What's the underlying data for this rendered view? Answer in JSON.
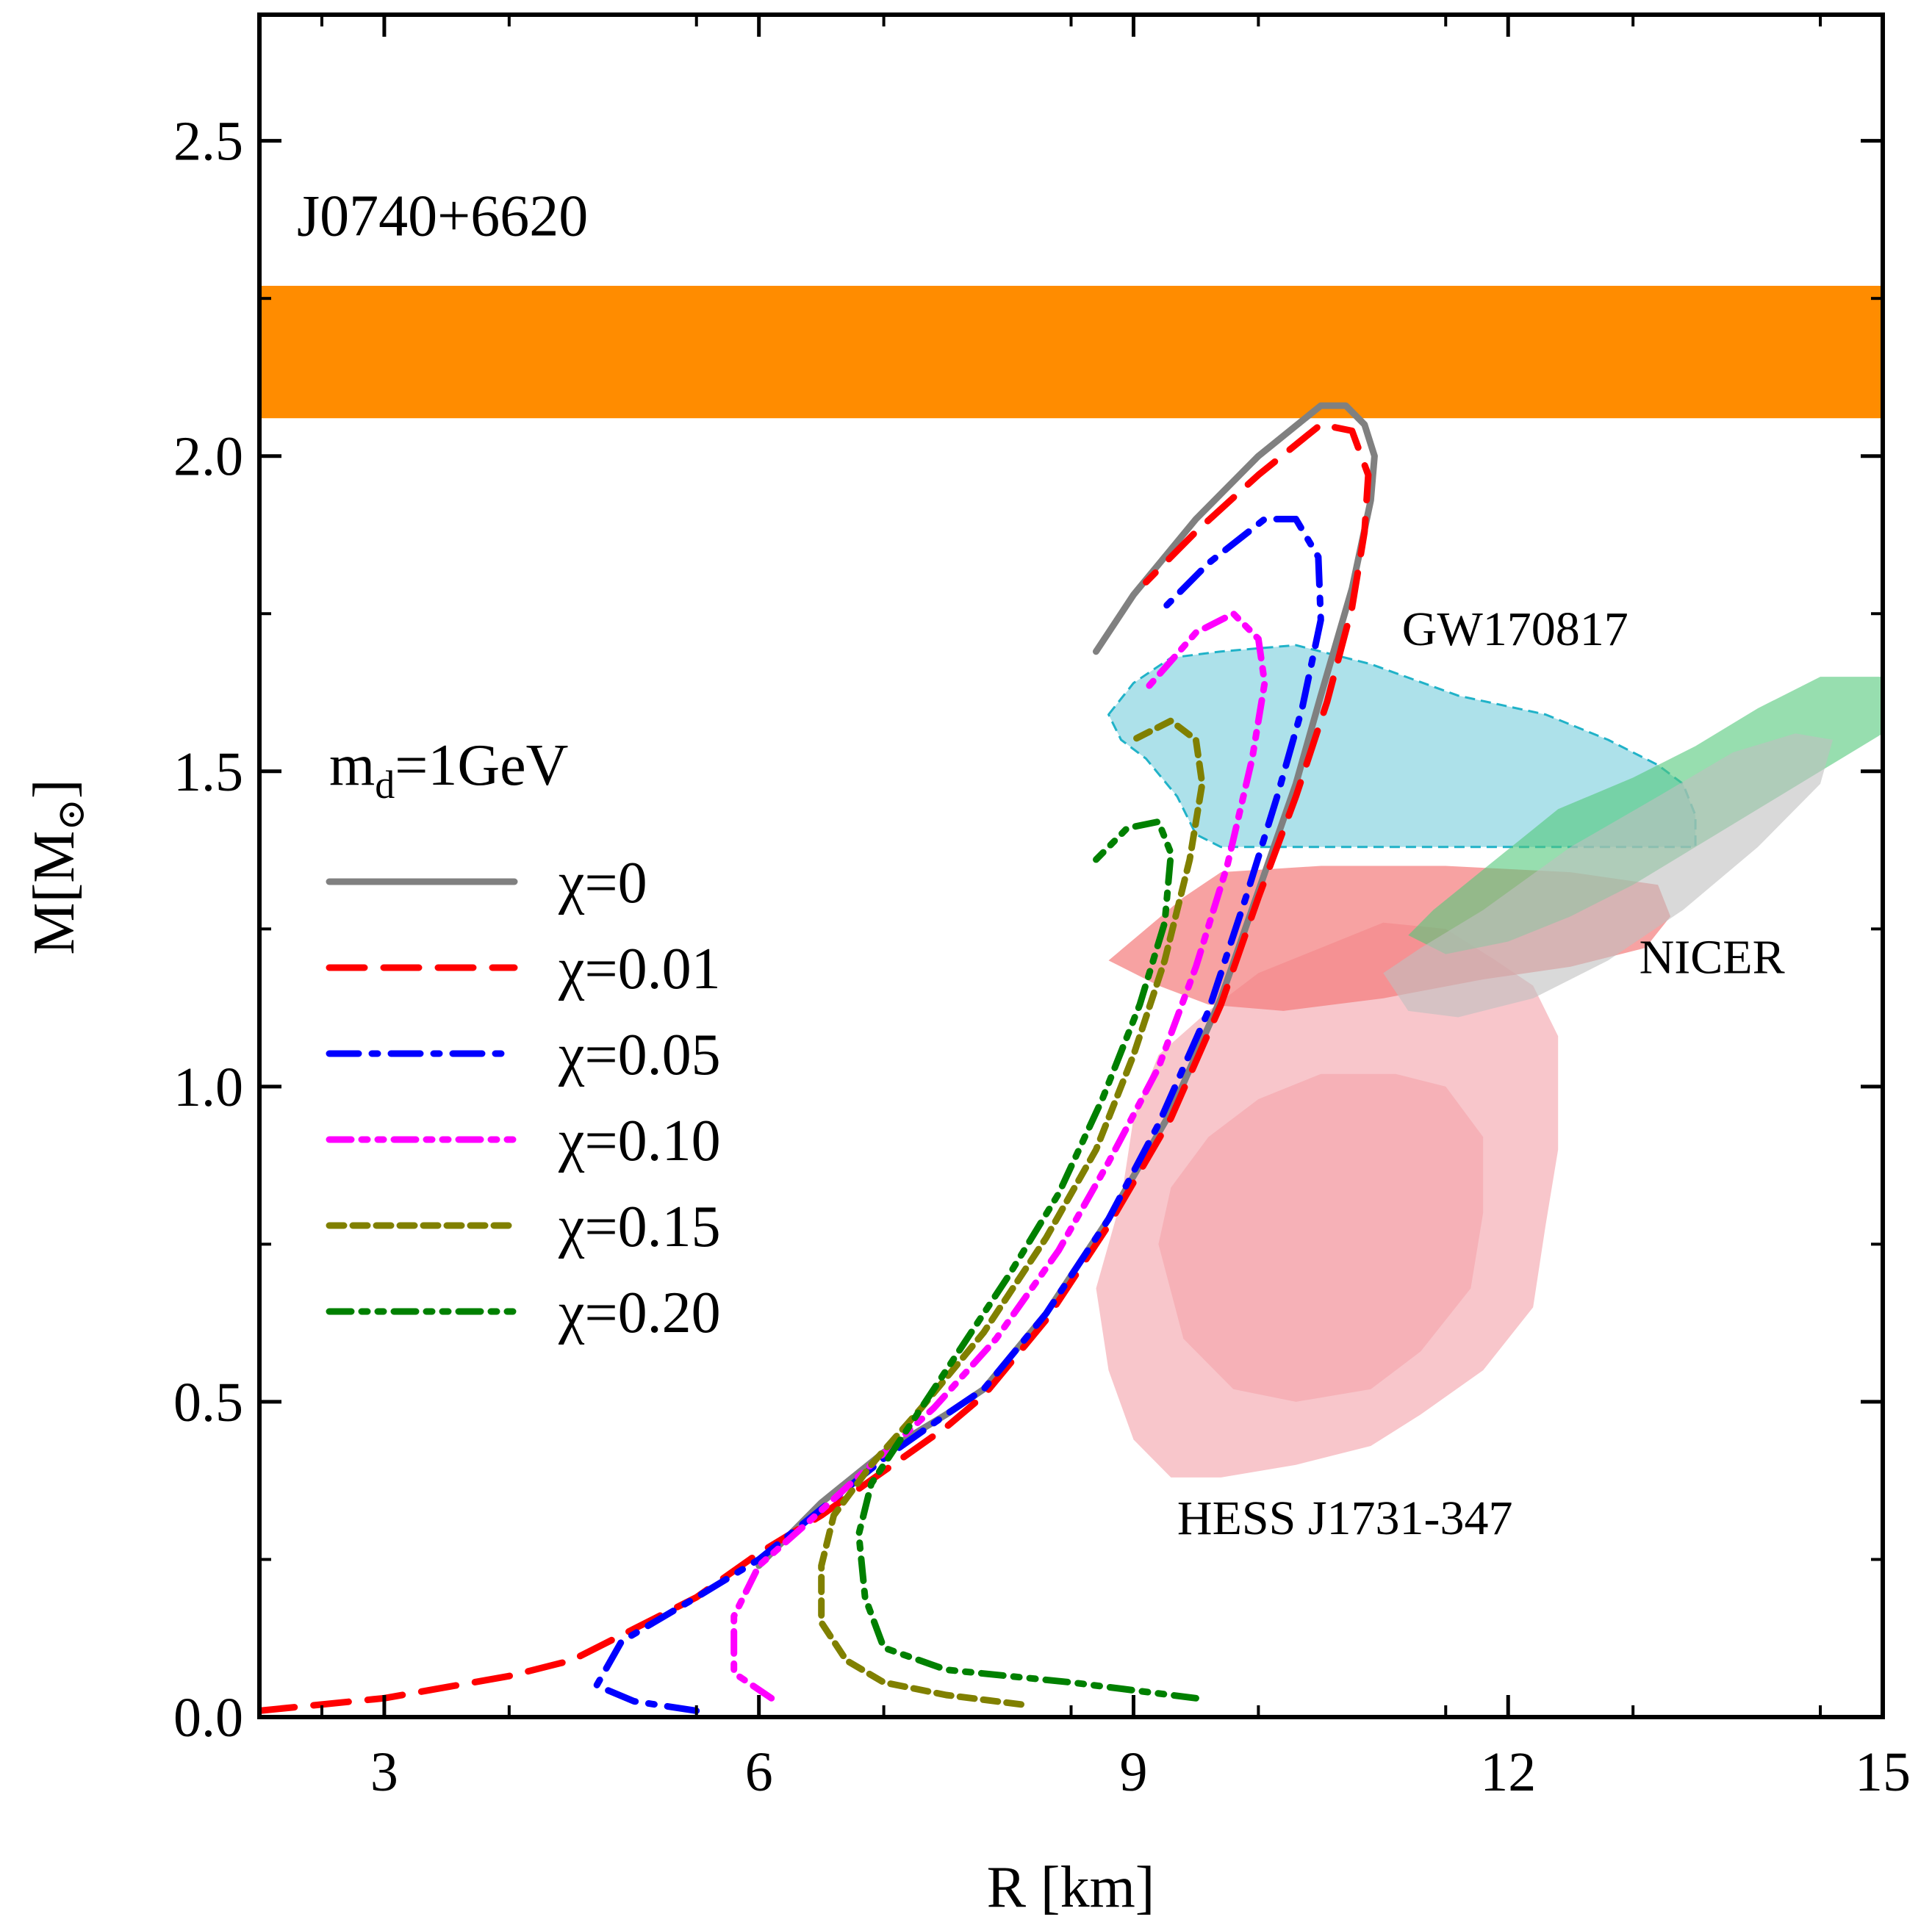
{
  "chart_data": {
    "type": "line",
    "title": "",
    "xlabel": "R [km]",
    "ylabel_main": "M[M",
    "ylabel_sub": "⊙",
    "ylabel_close": "]",
    "xlim": [
      2,
      15
    ],
    "ylim": [
      0,
      2.7
    ],
    "xticks": [
      3,
      6,
      9,
      12,
      15
    ],
    "xtick_labels": [
      "3",
      "6",
      "9",
      "12",
      "15"
    ],
    "yticks": [
      0.0,
      0.5,
      1.0,
      1.5,
      2.0,
      2.5
    ],
    "ytick_labels": [
      "0.0",
      "0.5",
      "1.0",
      "1.5",
      "2.0",
      "2.5"
    ],
    "legend_title_main": "m",
    "legend_title_sub": "d",
    "legend_title_rest": "=1GeV",
    "legend_position": "center-left",
    "series": [
      {
        "name": "χ=0",
        "color": "#808080",
        "style": "solid",
        "points": [
          [
            6.0,
            0.24
          ],
          [
            6.5,
            0.34
          ],
          [
            7.0,
            0.42
          ],
          [
            7.5,
            0.48
          ],
          [
            7.8,
            0.52
          ],
          [
            8.3,
            0.64
          ],
          [
            8.8,
            0.79
          ],
          [
            9.3,
            0.96
          ],
          [
            9.7,
            1.14
          ],
          [
            10.0,
            1.31
          ],
          [
            10.3,
            1.48
          ],
          [
            10.5,
            1.62
          ],
          [
            10.75,
            1.79
          ],
          [
            10.9,
            1.93
          ],
          [
            10.93,
            2.0
          ],
          [
            10.85,
            2.05
          ],
          [
            10.7,
            2.08
          ],
          [
            10.5,
            2.08
          ],
          [
            10.0,
            2.0
          ],
          [
            9.5,
            1.9
          ],
          [
            9.0,
            1.78
          ],
          [
            8.7,
            1.69
          ]
        ]
      },
      {
        "name": "χ=0.01",
        "color": "#ff0000",
        "style": "dashed",
        "points": [
          [
            2.0,
            0.01
          ],
          [
            3.0,
            0.03
          ],
          [
            4.0,
            0.065
          ],
          [
            4.5,
            0.09
          ],
          [
            5.0,
            0.14
          ],
          [
            5.5,
            0.19
          ],
          [
            6.0,
            0.26
          ],
          [
            6.5,
            0.32
          ],
          [
            7.0,
            0.39
          ],
          [
            7.5,
            0.46
          ],
          [
            7.8,
            0.51
          ],
          [
            8.3,
            0.63
          ],
          [
            8.8,
            0.78
          ],
          [
            9.3,
            0.95
          ],
          [
            9.7,
            1.13
          ],
          [
            10.0,
            1.3
          ],
          [
            10.3,
            1.46
          ],
          [
            10.55,
            1.61
          ],
          [
            10.75,
            1.76
          ],
          [
            10.85,
            1.88
          ],
          [
            10.88,
            1.97
          ],
          [
            10.75,
            2.04
          ],
          [
            10.5,
            2.05
          ],
          [
            10.0,
            1.97
          ],
          [
            9.5,
            1.88
          ],
          [
            9.1,
            1.8
          ]
        ]
      },
      {
        "name": "χ=0.05",
        "color": "#0000ff",
        "style": "dashdot",
        "points": [
          [
            5.5,
            0.01
          ],
          [
            5.0,
            0.025
          ],
          [
            4.7,
            0.05
          ],
          [
            4.9,
            0.12
          ],
          [
            5.5,
            0.19
          ],
          [
            6.0,
            0.25
          ],
          [
            6.5,
            0.33
          ],
          [
            7.0,
            0.41
          ],
          [
            7.5,
            0.48
          ],
          [
            7.8,
            0.52
          ],
          [
            8.3,
            0.64
          ],
          [
            8.8,
            0.79
          ],
          [
            9.2,
            0.94
          ],
          [
            9.6,
            1.12
          ],
          [
            9.9,
            1.3
          ],
          [
            10.15,
            1.46
          ],
          [
            10.35,
            1.6
          ],
          [
            10.5,
            1.74
          ],
          [
            10.48,
            1.84
          ],
          [
            10.3,
            1.9
          ],
          [
            10.05,
            1.9
          ],
          [
            9.6,
            1.83
          ],
          [
            9.2,
            1.75
          ]
        ]
      },
      {
        "name": "χ=0.10",
        "color": "#ff00ff",
        "style": "dashdotdot",
        "points": [
          [
            6.1,
            0.03
          ],
          [
            5.8,
            0.07
          ],
          [
            5.8,
            0.16
          ],
          [
            6.0,
            0.24
          ],
          [
            6.4,
            0.31
          ],
          [
            6.9,
            0.4
          ],
          [
            7.4,
            0.49
          ],
          [
            7.9,
            0.6
          ],
          [
            8.4,
            0.74
          ],
          [
            8.8,
            0.88
          ],
          [
            9.2,
            1.03
          ],
          [
            9.5,
            1.19
          ],
          [
            9.75,
            1.35
          ],
          [
            9.95,
            1.52
          ],
          [
            10.05,
            1.64
          ],
          [
            10.0,
            1.71
          ],
          [
            9.8,
            1.75
          ],
          [
            9.5,
            1.72
          ],
          [
            9.1,
            1.63
          ]
        ]
      },
      {
        "name": "χ=0.15",
        "color": "#808000",
        "style": "shortdash",
        "points": [
          [
            8.1,
            0.02
          ],
          [
            7.5,
            0.035
          ],
          [
            7.0,
            0.055
          ],
          [
            6.7,
            0.09
          ],
          [
            6.5,
            0.15
          ],
          [
            6.5,
            0.24
          ],
          [
            6.6,
            0.32
          ],
          [
            6.9,
            0.4
          ],
          [
            7.3,
            0.49
          ],
          [
            7.8,
            0.61
          ],
          [
            8.3,
            0.76
          ],
          [
            8.7,
            0.9
          ],
          [
            9.0,
            1.05
          ],
          [
            9.25,
            1.2
          ],
          [
            9.45,
            1.36
          ],
          [
            9.55,
            1.48
          ],
          [
            9.5,
            1.55
          ],
          [
            9.3,
            1.58
          ],
          [
            9.0,
            1.55
          ]
        ]
      },
      {
        "name": "χ=0.20",
        "color": "#008000",
        "style": "dashdotdot",
        "points": [
          [
            9.5,
            0.03
          ],
          [
            8.5,
            0.055
          ],
          [
            7.5,
            0.075
          ],
          [
            7.0,
            0.11
          ],
          [
            6.85,
            0.19
          ],
          [
            6.8,
            0.29
          ],
          [
            6.9,
            0.37
          ],
          [
            7.2,
            0.46
          ],
          [
            7.6,
            0.58
          ],
          [
            8.0,
            0.7
          ],
          [
            8.4,
            0.83
          ],
          [
            8.75,
            0.98
          ],
          [
            9.05,
            1.13
          ],
          [
            9.25,
            1.26
          ],
          [
            9.3,
            1.37
          ],
          [
            9.2,
            1.42
          ],
          [
            8.95,
            1.41
          ],
          [
            8.7,
            1.36
          ]
        ]
      }
    ],
    "bands": [
      {
        "name": "J0740+6620",
        "color": "#ff8c00",
        "ymin": 2.06,
        "ymax": 2.27
      }
    ],
    "regions": [
      {
        "name": "HESS J1731-347 outer",
        "color": "#f4a0a8",
        "opacity": 0.6,
        "points": [
          [
            8.7,
            0.68
          ],
          [
            8.8,
            0.55
          ],
          [
            9.0,
            0.44
          ],
          [
            9.3,
            0.38
          ],
          [
            9.7,
            0.38
          ],
          [
            10.3,
            0.4
          ],
          [
            10.9,
            0.43
          ],
          [
            11.3,
            0.48
          ],
          [
            11.8,
            0.55
          ],
          [
            12.2,
            0.65
          ],
          [
            12.3,
            0.78
          ],
          [
            12.4,
            0.9
          ],
          [
            12.4,
            1.08
          ],
          [
            12.2,
            1.16
          ],
          [
            11.9,
            1.2
          ],
          [
            11.5,
            1.25
          ],
          [
            11.0,
            1.26
          ],
          [
            10.5,
            1.22
          ],
          [
            10.0,
            1.18
          ],
          [
            9.6,
            1.12
          ],
          [
            9.2,
            1.05
          ],
          [
            9.0,
            0.95
          ],
          [
            8.9,
            0.82
          ]
        ]
      },
      {
        "name": "HESS J1731-347 inner",
        "color": "#f4a0a8",
        "opacity": 0.55,
        "points": [
          [
            9.2,
            0.75
          ],
          [
            9.4,
            0.6
          ],
          [
            9.8,
            0.52
          ],
          [
            10.3,
            0.5
          ],
          [
            10.9,
            0.52
          ],
          [
            11.3,
            0.58
          ],
          [
            11.7,
            0.68
          ],
          [
            11.8,
            0.8
          ],
          [
            11.8,
            0.92
          ],
          [
            11.5,
            1.0
          ],
          [
            11.1,
            1.02
          ],
          [
            10.5,
            1.02
          ],
          [
            10.0,
            0.98
          ],
          [
            9.6,
            0.92
          ],
          [
            9.3,
            0.84
          ]
        ]
      },
      {
        "name": "GW170817",
        "color": "#9fdce6",
        "opacity": 0.85,
        "stroke": "#20b2c8",
        "points": [
          [
            8.8,
            1.59
          ],
          [
            9.0,
            1.64
          ],
          [
            9.3,
            1.68
          ],
          [
            9.7,
            1.69
          ],
          [
            10.3,
            1.7
          ],
          [
            10.9,
            1.67
          ],
          [
            11.6,
            1.62
          ],
          [
            12.3,
            1.59
          ],
          [
            12.8,
            1.55
          ],
          [
            13.2,
            1.51
          ],
          [
            13.4,
            1.48
          ],
          [
            13.5,
            1.43
          ],
          [
            13.5,
            1.38
          ],
          [
            13.2,
            1.38
          ],
          [
            12.5,
            1.38
          ],
          [
            11.5,
            1.38
          ],
          [
            10.5,
            1.38
          ],
          [
            9.7,
            1.38
          ],
          [
            9.5,
            1.4
          ],
          [
            9.35,
            1.46
          ],
          [
            9.1,
            1.52
          ],
          [
            8.9,
            1.55
          ]
        ]
      },
      {
        "name": "NICER red outer",
        "color": "#f47a7a",
        "opacity": 0.7,
        "points": [
          [
            8.8,
            1.2
          ],
          [
            9.1,
            1.25
          ],
          [
            9.4,
            1.3
          ],
          [
            9.7,
            1.34
          ],
          [
            10.5,
            1.35
          ],
          [
            11.5,
            1.35
          ],
          [
            12.5,
            1.34
          ],
          [
            13.2,
            1.32
          ],
          [
            13.3,
            1.27
          ],
          [
            13.1,
            1.22
          ],
          [
            12.5,
            1.19
          ],
          [
            11.8,
            1.17
          ],
          [
            11.0,
            1.14
          ],
          [
            10.2,
            1.12
          ],
          [
            9.6,
            1.13
          ],
          [
            9.2,
            1.16
          ]
        ]
      },
      {
        "name": "NICER green",
        "color": "#52c87a",
        "opacity": 0.6,
        "points": [
          [
            11.2,
            1.24
          ],
          [
            11.4,
            1.28
          ],
          [
            11.9,
            1.36
          ],
          [
            12.4,
            1.44
          ],
          [
            13.0,
            1.49
          ],
          [
            13.5,
            1.54
          ],
          [
            14.0,
            1.6
          ],
          [
            14.5,
            1.65
          ],
          [
            15.0,
            1.65
          ],
          [
            15.2,
            1.62
          ],
          [
            15.0,
            1.56
          ],
          [
            14.5,
            1.5
          ],
          [
            14.0,
            1.44
          ],
          [
            13.5,
            1.38
          ],
          [
            13.0,
            1.32
          ],
          [
            12.5,
            1.27
          ],
          [
            12.0,
            1.23
          ],
          [
            11.5,
            1.21
          ]
        ]
      },
      {
        "name": "NICER grey",
        "color": "#c0c0c0",
        "opacity": 0.6,
        "points": [
          [
            11.0,
            1.18
          ],
          [
            11.3,
            1.22
          ],
          [
            11.8,
            1.28
          ],
          [
            12.5,
            1.38
          ],
          [
            13.2,
            1.46
          ],
          [
            13.8,
            1.53
          ],
          [
            14.3,
            1.56
          ],
          [
            14.6,
            1.55
          ],
          [
            14.5,
            1.48
          ],
          [
            14.0,
            1.38
          ],
          [
            13.4,
            1.28
          ],
          [
            12.8,
            1.2
          ],
          [
            12.2,
            1.14
          ],
          [
            11.6,
            1.11
          ],
          [
            11.2,
            1.12
          ]
        ]
      }
    ],
    "annotations": [
      {
        "text": "J0740+6620",
        "x": 2.3,
        "y": 2.35,
        "color": "#ff8c00",
        "size": "large"
      },
      {
        "text": "GW170817",
        "x": 11.15,
        "y": 1.7,
        "color": "#000000",
        "size": "medium"
      },
      {
        "text": "NICER",
        "x": 13.05,
        "y": 1.18,
        "color": "#000000",
        "size": "medium"
      },
      {
        "text": "HESS J1731-347",
        "x": 9.35,
        "y": 0.29,
        "color": "#000000",
        "size": "medium"
      }
    ]
  }
}
